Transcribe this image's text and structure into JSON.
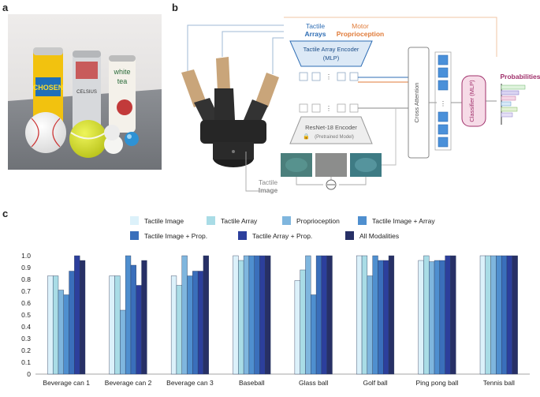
{
  "panels": {
    "a": "a",
    "b": "b",
    "c": "c"
  },
  "photo": {
    "can1_brand": "CHOSEN",
    "can2_brand": "CELSIUS",
    "can3_line1": "white",
    "can3_line2": "tea"
  },
  "diagram": {
    "tactile_arrays_line1": "Tactile",
    "tactile_arrays_line2": "Arrays",
    "motor_line1": "Motor",
    "motor_line2": "Proprioception",
    "tactile_array_encoder_line1": "Tactile Array Encoder",
    "tactile_array_encoder_line2": "(MLP)",
    "resnet_line1": "ResNet-18 Encoder",
    "resnet_line2": "(Pretrained Model)",
    "cross_attention": "Cross Attention",
    "classifier": "Classifier (MLP)",
    "probabilities": "Probabilities",
    "tactile_image_line1": "Tactile",
    "tactile_image_line2": "Image",
    "colors": {
      "tactile_blue": "#2e6db4",
      "motor_orange": "#e07b39",
      "prob_magenta": "#a0306b"
    }
  },
  "chart_data": {
    "type": "bar",
    "title": "",
    "xlabel": "",
    "ylabel": "",
    "ylim": [
      0,
      1.0
    ],
    "yticks": [
      "0",
      "0.1",
      "0.2",
      "0.3",
      "0.4",
      "0.5",
      "0.6",
      "0.7",
      "0.8",
      "0.9",
      "1.0"
    ],
    "categories": [
      "Beverage can 1",
      "Beverage can 2",
      "Beverage can 3",
      "Baseball",
      "Glass ball",
      "Golf ball",
      "Ping pong ball",
      "Tennis ball"
    ],
    "series": [
      {
        "name": "Tactile Image",
        "color": "#dcf1fa",
        "values": [
          0.83,
          0.83,
          0.83,
          1.0,
          0.79,
          1.0,
          0.96,
          1.0
        ]
      },
      {
        "name": "Tactile Array",
        "color": "#a9dce6",
        "values": [
          0.83,
          0.83,
          0.75,
          0.96,
          0.88,
          1.0,
          1.0,
          1.0
        ]
      },
      {
        "name": "Proprioception",
        "color": "#7fb6de",
        "values": [
          0.71,
          0.54,
          1.0,
          1.0,
          1.0,
          0.83,
          0.95,
          1.0
        ]
      },
      {
        "name": "Tactile Image + Array",
        "color": "#4f8fcf",
        "values": [
          0.67,
          1.0,
          0.83,
          1.0,
          0.67,
          1.0,
          0.96,
          1.0
        ]
      },
      {
        "name": "Tactile Image + Prop.",
        "color": "#3a6fbb",
        "values": [
          0.87,
          0.92,
          0.87,
          1.0,
          1.0,
          0.96,
          0.96,
          1.0
        ]
      },
      {
        "name": "Tactile Array + Prop.",
        "color": "#2c3f9c",
        "values": [
          1.0,
          0.75,
          0.87,
          1.0,
          1.0,
          0.96,
          1.0,
          1.0
        ]
      },
      {
        "name": "All Modalities",
        "color": "#273066",
        "values": [
          0.96,
          0.96,
          1.0,
          1.0,
          1.0,
          1.0,
          1.0,
          1.0
        ]
      }
    ]
  }
}
